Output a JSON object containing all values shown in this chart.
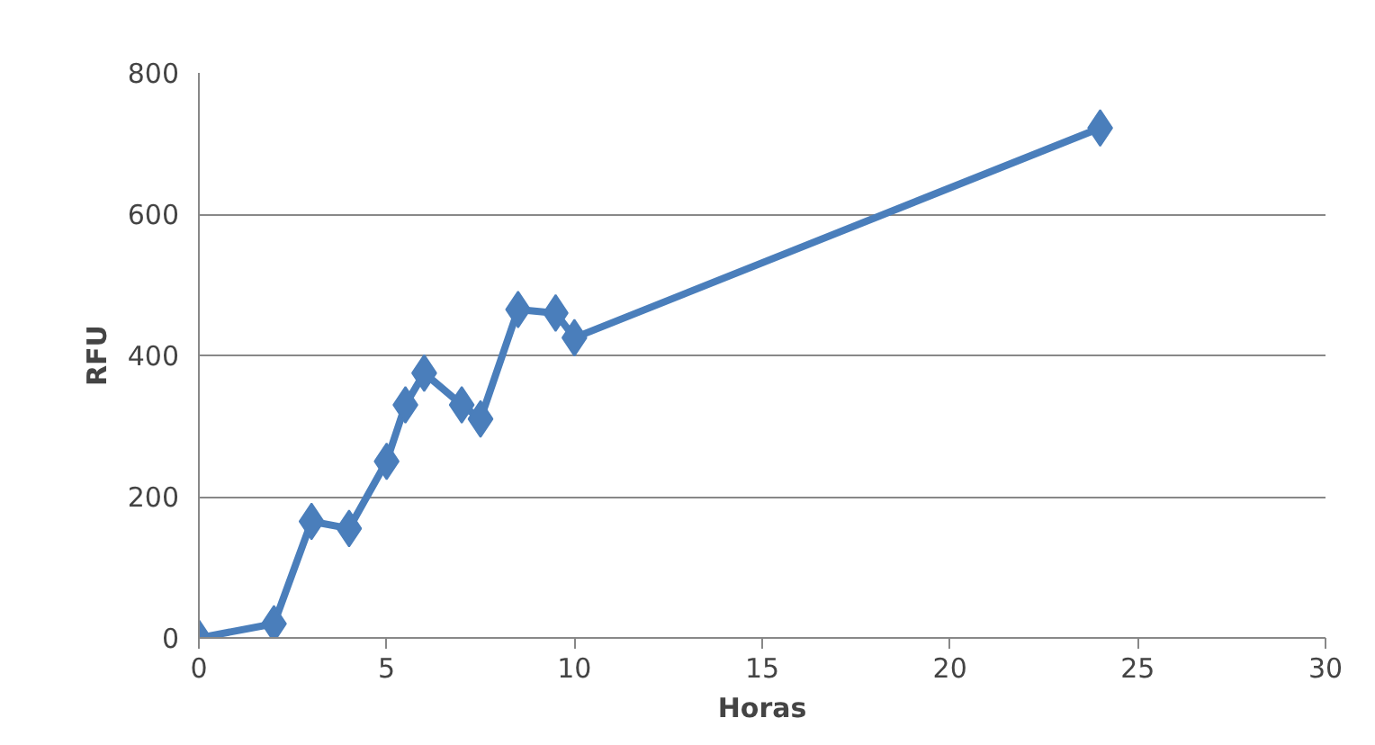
{
  "chart_data": {
    "type": "line",
    "xlabel": "Horas",
    "ylabel": "RFU",
    "x": [
      0,
      2,
      3,
      4,
      5,
      5.5,
      6,
      7,
      7.5,
      8.5,
      9.5,
      10,
      24
    ],
    "series": [
      {
        "color": "#4a7ebb",
        "values": [
          0,
          20,
          165,
          155,
          250,
          330,
          375,
          330,
          310,
          465,
          460,
          425,
          722
        ]
      }
    ],
    "xlim": [
      0,
      30
    ],
    "xticks": [
      0,
      5,
      10,
      15,
      20,
      25,
      30
    ],
    "ylim": [
      0,
      800
    ],
    "yticks": [
      0,
      200,
      400,
      600,
      800
    ],
    "grid": "y",
    "marker": "diamond",
    "line_style": "solid"
  }
}
